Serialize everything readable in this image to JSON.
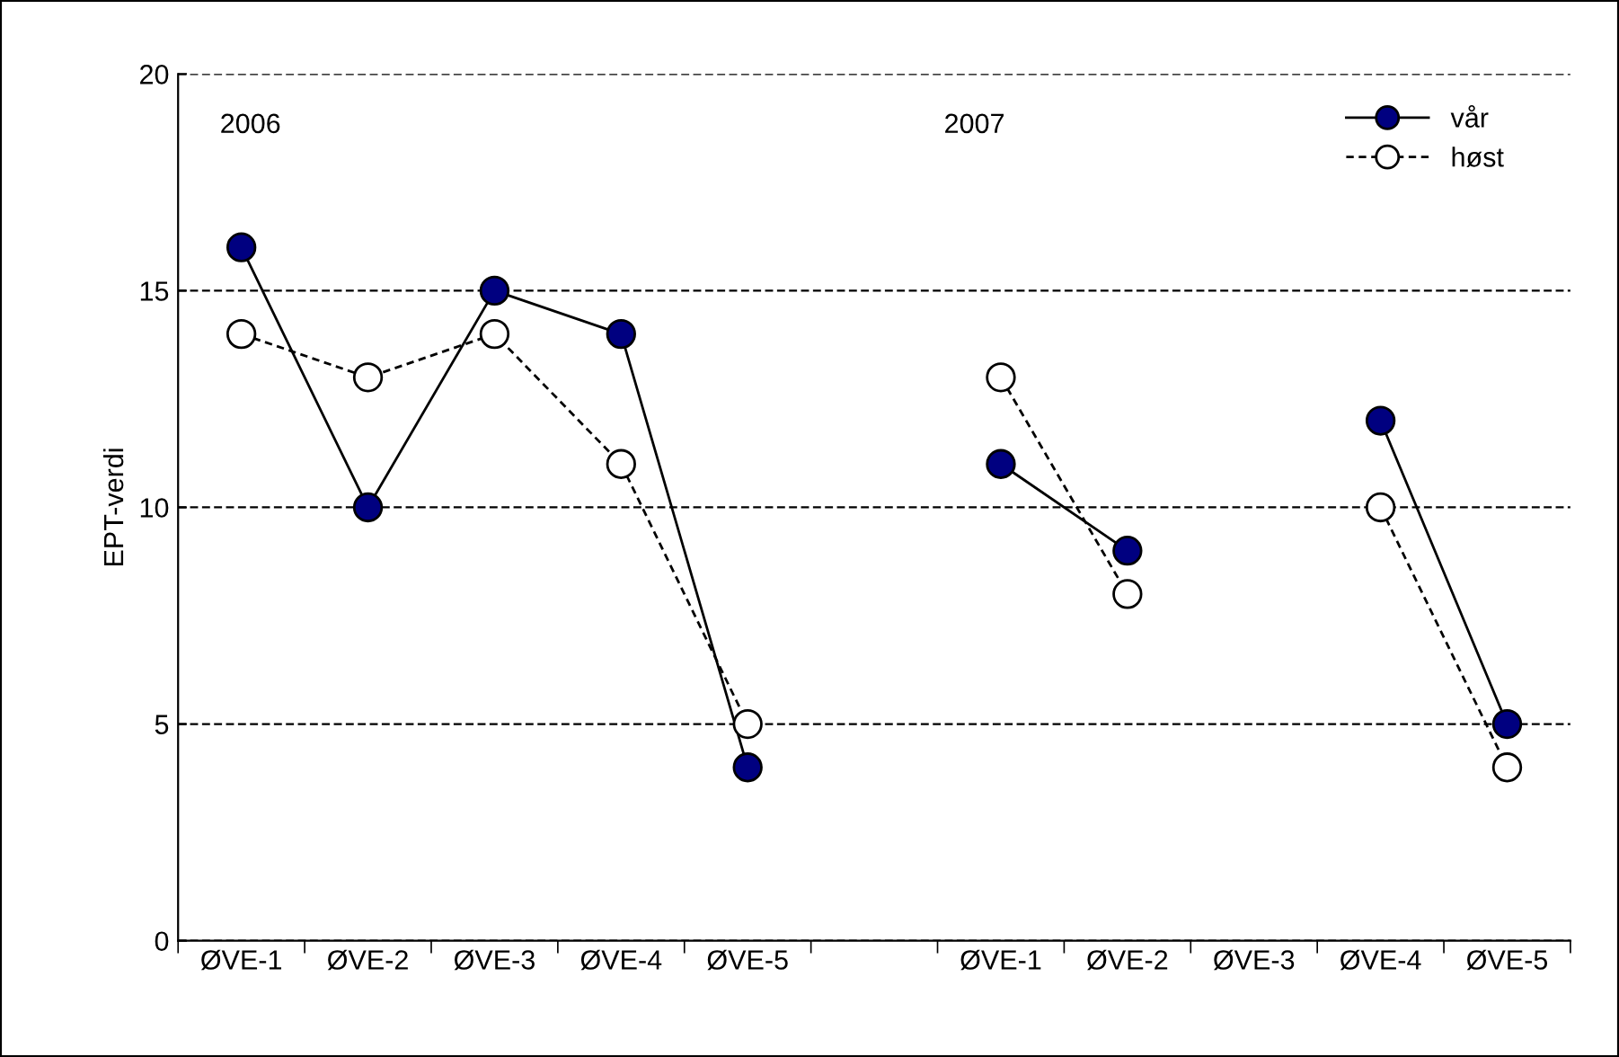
{
  "chart_data": {
    "type": "line",
    "ylabel": "EPT-verdi",
    "categories": [
      "ØVE-1",
      "ØVE-2",
      "ØVE-3",
      "ØVE-4",
      "ØVE-5",
      null,
      "ØVE-1",
      "ØVE-2",
      "ØVE-3",
      "ØVE-4",
      "ØVE-5"
    ],
    "series": [
      {
        "name": "vår",
        "color": "#000080",
        "line_style": "solid",
        "values": [
          16,
          10,
          15,
          14,
          4,
          null,
          11,
          9,
          null,
          12,
          5
        ]
      },
      {
        "name": "høst",
        "color": "#ffffff",
        "line_style": "dashed",
        "values": [
          14,
          13,
          14,
          11,
          5,
          null,
          13,
          8,
          null,
          10,
          4
        ]
      }
    ],
    "annotations": [
      "2006",
      "2007"
    ],
    "ylim": [
      0,
      20
    ],
    "yticks": [
      0,
      5,
      10,
      15,
      20
    ],
    "grid": "y",
    "legend": "top right",
    "marker": "circle"
  }
}
